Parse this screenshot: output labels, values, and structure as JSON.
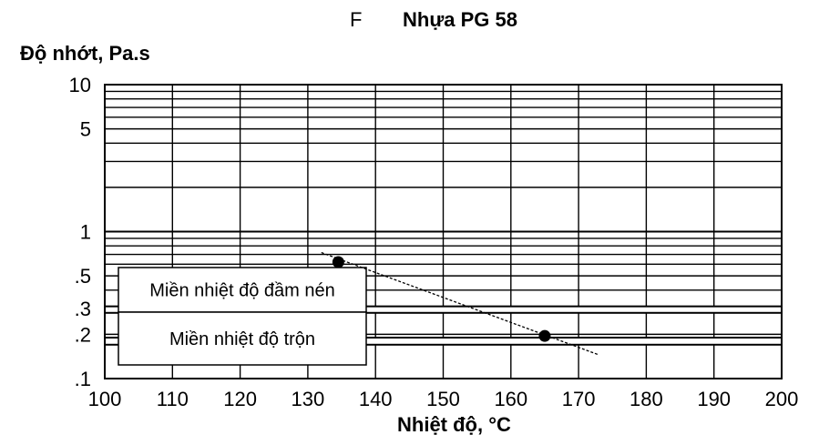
{
  "panel_letter": "F",
  "chart_data": {
    "type": "scatter",
    "title": "Nhựa PG 58",
    "ylabel": "Độ nhớt, Pa.s",
    "xlabel": "Nhiệt độ, °C",
    "xlim": [
      100,
      200
    ],
    "ylim": [
      0.1,
      10
    ],
    "y_scale": "log",
    "grid": true,
    "x_ticks": [
      100,
      110,
      120,
      130,
      140,
      150,
      160,
      170,
      180,
      190,
      200
    ],
    "y_ticks": [
      {
        "value": 10,
        "label": "10"
      },
      {
        "value": 5,
        "label": "5"
      },
      {
        "value": 1,
        "label": "1"
      },
      {
        "value": 0.5,
        "label": ".5"
      },
      {
        "value": 0.3,
        "label": ".3"
      },
      {
        "value": 0.2,
        "label": ".2"
      },
      {
        "value": 0.1,
        "label": ".1"
      }
    ],
    "points": [
      {
        "x": 134.5,
        "y": 0.62
      },
      {
        "x": 165,
        "y": 0.195
      }
    ],
    "trend_line": {
      "x": [
        132,
        173
      ],
      "y": [
        0.72,
        0.145
      ]
    },
    "bands": [
      {
        "label": "Miền nhiệt độ đầm nén",
        "y": [
          0.28,
          0.31
        ]
      },
      {
        "label": "Miền nhiệt độ trộn",
        "y": [
          0.17,
          0.19
        ]
      }
    ]
  }
}
